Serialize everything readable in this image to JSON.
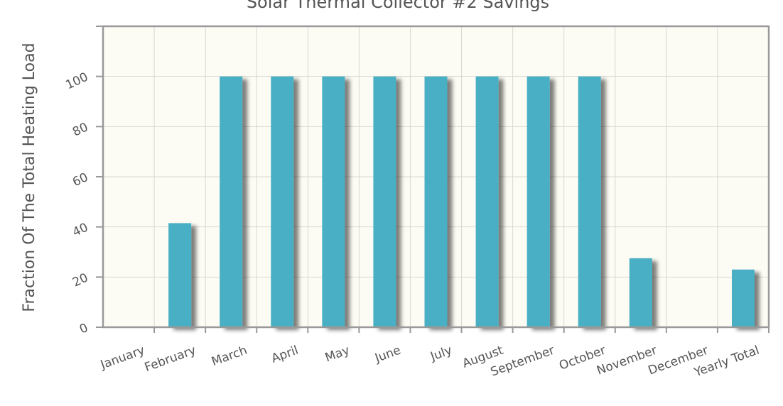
{
  "chart_data": {
    "type": "bar",
    "title": "Solar Thermal Collector #2 Savings",
    "y_label": "Fraction Of The Total Heating Load",
    "categories": [
      "January",
      "February",
      "March",
      "April",
      "May",
      "June",
      "July",
      "August",
      "September",
      "October",
      "November",
      "December",
      "Yearly Total"
    ],
    "values": [
      0,
      41.5,
      100,
      100,
      100,
      100,
      100,
      100,
      100,
      100,
      27.5,
      0,
      23
    ],
    "color": "#4aafc4",
    "ylim": [
      0,
      120
    ],
    "yticks": [
      0,
      20,
      40,
      60,
      80,
      100
    ],
    "grid": true
  }
}
